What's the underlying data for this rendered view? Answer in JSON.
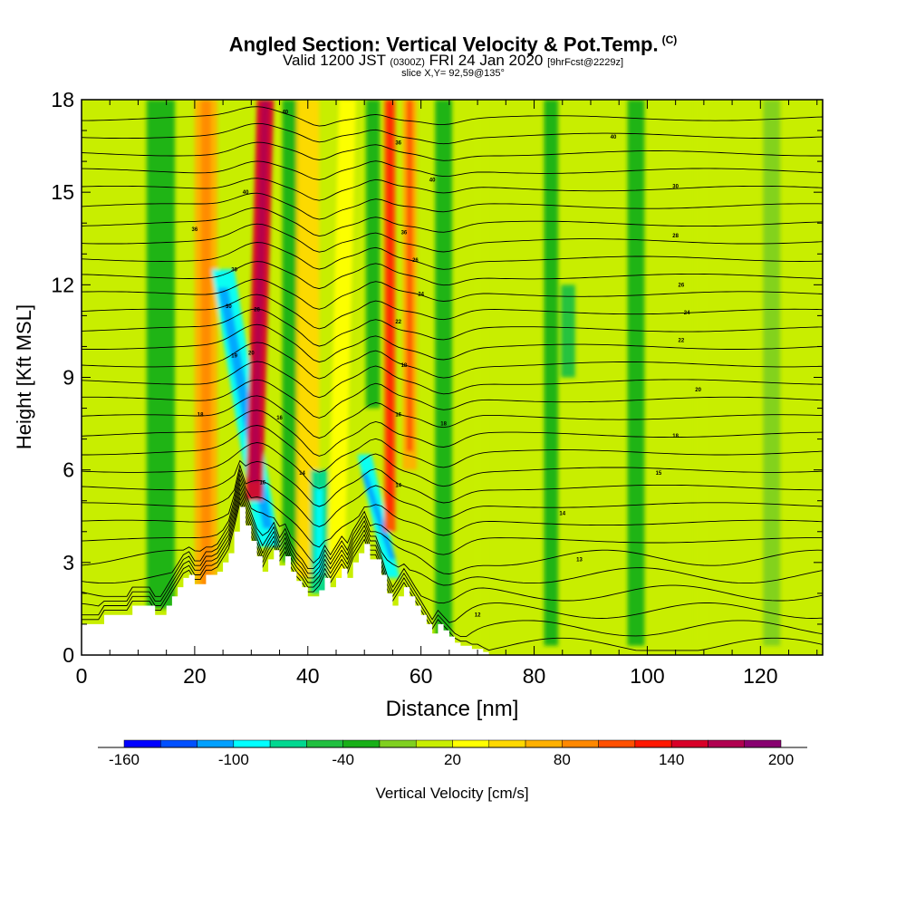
{
  "header": {
    "title_main": "Angled Section: Vertical Velocity & Pot.Temp.",
    "title_tag": "(C)",
    "valid_prefix": "Valid 1200 JST",
    "valid_utc": "(0300Z)",
    "valid_date": "FRI 24 Jan 2020",
    "forecast_tag": "[9hrFcst@2229z]",
    "slice_info": "slice X,Y= 92,59@135°"
  },
  "colors": {
    "terrain": "#ffffff",
    "contour": "#000000"
  },
  "chart_data": {
    "type": "heatmap",
    "xlabel": "Distance [nm]",
    "ylabel": "Height [Kft MSL]",
    "xlim": [
      0,
      131
    ],
    "ylim": [
      0,
      18
    ],
    "x_ticks": [
      0,
      20,
      40,
      60,
      80,
      100,
      120
    ],
    "y_ticks": [
      0,
      3,
      6,
      9,
      12,
      15,
      18
    ],
    "colorbar": {
      "label": "Vertical Velocity [cm/s]",
      "levels": [
        -160,
        -140,
        -120,
        -100,
        -80,
        -60,
        -40,
        -20,
        0,
        20,
        40,
        60,
        80,
        100,
        120,
        140,
        160,
        180,
        200
      ],
      "tick_labels": [
        "-160",
        "-100",
        "-40",
        "20",
        "80",
        "140",
        "200"
      ],
      "tick_values": [
        -160,
        -100,
        -40,
        20,
        80,
        140,
        200
      ],
      "colors": [
        "#0000ff",
        "#0050ff",
        "#00a0ff",
        "#00ffff",
        "#00d890",
        "#20c040",
        "#18b018",
        "#80d020",
        "#c8ee00",
        "#ffff00",
        "#ffd800",
        "#ffb000",
        "#ff8800",
        "#ff5000",
        "#ff1800",
        "#d80028",
        "#b00050",
        "#880070"
      ]
    },
    "velocity_features": [
      {
        "x0": 22,
        "x1": 22,
        "z0": 1.0,
        "z1": 18,
        "width": 4.0,
        "value": 60
      },
      {
        "x0": 30.5,
        "x1": 32.5,
        "z0": 5.0,
        "z1": 18,
        "width": 3.0,
        "value": 150
      },
      {
        "x0": 25,
        "x1": 33,
        "z0": 12.5,
        "z1": 3.5,
        "width": 4.0,
        "value": -95
      },
      {
        "x0": 14,
        "x1": 14,
        "z0": 1.5,
        "z1": 18,
        "width": 5.0,
        "value": -40
      },
      {
        "x0": 37,
        "x1": 37,
        "z0": 3.0,
        "z1": 18,
        "width": 3.0,
        "value": -35
      },
      {
        "x0": 40,
        "x1": 40,
        "z0": 2.5,
        "z1": 18,
        "width": 4.0,
        "value": 40
      },
      {
        "x0": 42,
        "x1": 42,
        "z0": 2.0,
        "z1": 6.0,
        "width": 3.0,
        "value": -65
      },
      {
        "x0": 45,
        "x1": 47,
        "z0": 2.5,
        "z1": 18,
        "width": 3.0,
        "value": 30
      },
      {
        "x0": 51.5,
        "x1": 51.5,
        "z0": 8.0,
        "z1": 18,
        "width": 2.5,
        "value": -35
      },
      {
        "x0": 50,
        "x1": 55,
        "z0": 6.5,
        "z1": 2.5,
        "width": 2.5,
        "value": -100
      },
      {
        "x0": 54.5,
        "x1": 54.5,
        "z0": 4.0,
        "z1": 18,
        "width": 2.0,
        "value": 110
      },
      {
        "x0": 58,
        "x1": 58,
        "z0": 6.0,
        "z1": 18,
        "width": 2.5,
        "value": 75
      },
      {
        "x0": 64,
        "x1": 64,
        "z0": 0.5,
        "z1": 18,
        "width": 3.0,
        "value": -30
      },
      {
        "x0": 70,
        "x1": 70,
        "z0": 0.3,
        "z1": 18,
        "width": 3.0,
        "value": 15
      },
      {
        "x0": 83,
        "x1": 83,
        "z0": 0.3,
        "z1": 18,
        "width": 2.5,
        "value": -35
      },
      {
        "x0": 86,
        "x1": 86,
        "z0": 9.0,
        "z1": 12.0,
        "width": 2.5,
        "value": -50
      },
      {
        "x0": 98,
        "x1": 98,
        "z0": 0.3,
        "z1": 18,
        "width": 3.0,
        "value": -25
      },
      {
        "x0": 110,
        "x1": 110,
        "z0": 0.3,
        "z1": 18,
        "width": 3.0,
        "value": 10
      },
      {
        "x0": 122,
        "x1": 122,
        "z0": 0.3,
        "z1": 18,
        "width": 3.0,
        "value": -20
      }
    ],
    "terrain_profile": {
      "x": [
        0,
        4,
        4,
        9,
        9,
        13,
        13,
        15,
        15,
        16,
        16,
        17,
        17,
        18,
        18,
        19,
        19,
        20,
        20,
        22,
        22,
        24,
        24,
        25,
        25,
        26,
        26,
        27,
        27,
        28,
        28,
        29,
        29,
        30,
        30,
        31,
        31,
        32,
        32,
        33,
        33,
        34,
        34,
        35,
        35,
        36,
        36,
        37,
        37,
        38,
        38,
        39,
        39,
        40,
        40,
        42,
        42,
        43,
        43,
        44,
        44,
        45,
        45,
        46,
        46,
        47,
        47,
        48,
        48,
        49,
        49,
        50,
        50,
        51,
        51,
        53,
        53,
        54,
        54,
        55,
        55,
        56,
        56,
        57,
        57,
        58,
        58,
        59,
        59,
        60,
        60,
        61,
        61,
        62,
        62,
        63,
        63,
        64,
        64,
        65,
        65,
        66,
        66,
        67,
        67,
        69,
        69,
        71,
        71,
        72,
        72,
        131
      ],
      "z": [
        1.0,
        1.0,
        1.3,
        1.3,
        1.6,
        1.6,
        1.3,
        1.3,
        1.6,
        1.6,
        1.9,
        1.9,
        2.2,
        2.2,
        2.5,
        2.5,
        2.6,
        2.6,
        2.3,
        2.3,
        2.6,
        2.6,
        2.7,
        2.7,
        3.0,
        3.0,
        3.3,
        3.3,
        4.0,
        4.0,
        4.8,
        4.8,
        4.2,
        4.2,
        3.7,
        3.7,
        3.2,
        3.2,
        2.7,
        2.7,
        3.1,
        3.1,
        3.4,
        3.4,
        2.9,
        2.9,
        3.2,
        3.2,
        2.7,
        2.7,
        2.4,
        2.4,
        2.2,
        2.2,
        1.9,
        1.9,
        2.1,
        2.1,
        2.5,
        2.5,
        2.2,
        2.2,
        2.5,
        2.5,
        2.8,
        2.8,
        2.5,
        2.5,
        3.0,
        3.0,
        3.3,
        3.3,
        3.6,
        3.6,
        3.1,
        3.1,
        2.6,
        2.6,
        2.0,
        2.0,
        1.6,
        1.6,
        1.9,
        1.9,
        2.2,
        2.2,
        1.9,
        1.9,
        1.6,
        1.6,
        1.3,
        1.3,
        1.0,
        1.0,
        0.7,
        0.7,
        1.0,
        1.0,
        0.8,
        0.8,
        0.6,
        0.6,
        0.4,
        0.4,
        0.3,
        0.3,
        0.2,
        0.2,
        0.1,
        0.1,
        0.0,
        0.0
      ]
    },
    "isentropes": {
      "base_height": 0.3,
      "spacing": 0.57,
      "count": 31,
      "labels": [
        {
          "text": "40",
          "x": 36,
          "z": 17.6
        },
        {
          "text": "36",
          "x": 56,
          "z": 16.6
        },
        {
          "text": "40",
          "x": 94,
          "z": 16.8
        },
        {
          "text": "40",
          "x": 62,
          "z": 15.4
        },
        {
          "text": "40",
          "x": 29,
          "z": 15.0
        },
        {
          "text": "30",
          "x": 105,
          "z": 15.2
        },
        {
          "text": "36",
          "x": 20,
          "z": 13.8
        },
        {
          "text": "36",
          "x": 57,
          "z": 13.7
        },
        {
          "text": "28",
          "x": 105,
          "z": 13.6
        },
        {
          "text": "30",
          "x": 27,
          "z": 12.5
        },
        {
          "text": "26",
          "x": 59,
          "z": 12.8
        },
        {
          "text": "26",
          "x": 106,
          "z": 12.0
        },
        {
          "text": "30",
          "x": 26,
          "z": 11.3
        },
        {
          "text": "24",
          "x": 60,
          "z": 11.7
        },
        {
          "text": "28",
          "x": 31,
          "z": 11.2
        },
        {
          "text": "24",
          "x": 107,
          "z": 11.1
        },
        {
          "text": "22",
          "x": 56,
          "z": 10.8
        },
        {
          "text": "22",
          "x": 106,
          "z": 10.2
        },
        {
          "text": "19",
          "x": 27,
          "z": 9.7
        },
        {
          "text": "20",
          "x": 30,
          "z": 9.8
        },
        {
          "text": "18",
          "x": 57,
          "z": 9.4
        },
        {
          "text": "20",
          "x": 109,
          "z": 8.6
        },
        {
          "text": "18",
          "x": 21,
          "z": 7.8
        },
        {
          "text": "16",
          "x": 35,
          "z": 7.7
        },
        {
          "text": "16",
          "x": 56,
          "z": 7.8
        },
        {
          "text": "18",
          "x": 64,
          "z": 7.5
        },
        {
          "text": "18",
          "x": 105,
          "z": 7.1
        },
        {
          "text": "14",
          "x": 39,
          "z": 5.9
        },
        {
          "text": "16",
          "x": 32,
          "z": 5.6
        },
        {
          "text": "14",
          "x": 56,
          "z": 5.5
        },
        {
          "text": "15",
          "x": 102,
          "z": 5.9
        },
        {
          "text": "14",
          "x": 85,
          "z": 4.6
        },
        {
          "text": "13",
          "x": 88,
          "z": 3.1
        },
        {
          "text": "12",
          "x": 70,
          "z": 1.3
        }
      ]
    }
  }
}
